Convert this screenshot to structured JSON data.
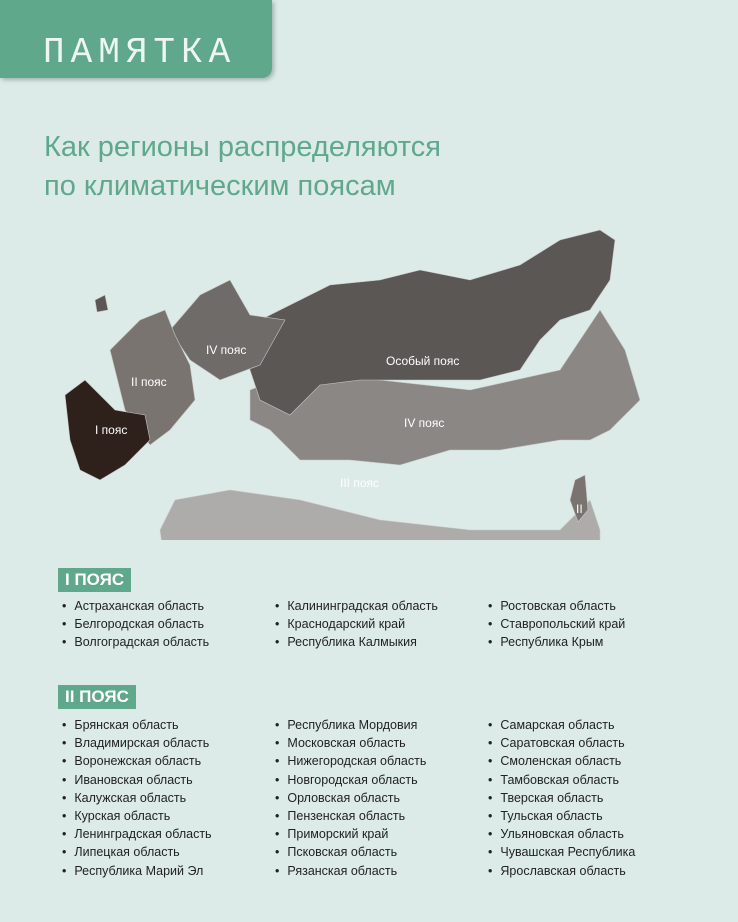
{
  "header": {
    "tab": "ПАМЯТКА",
    "title_line1": "Как регионы распределяются",
    "title_line2": "по климатическим поясам"
  },
  "map": {
    "labels": {
      "zone1": "I пояс",
      "zone2": "II пояс",
      "zone4w": "IV пояс",
      "special": "Особый пояс",
      "zone4e": "IV пояс",
      "zone3": "III пояс",
      "zone2e": "II"
    },
    "colors": {
      "zone1": "#2e211c",
      "zone2": "#7a7471",
      "zone3": "#aeacaa",
      "zone4": "#8a8785",
      "special": "#5a5755"
    }
  },
  "zones": [
    {
      "title": "I ПОЯС",
      "columns": [
        [
          "Астраханская область",
          "Белгородская область",
          "Волгоградская область"
        ],
        [
          "Калининградская область",
          "Краснодарский край",
          "Республика Калмыкия"
        ],
        [
          "Ростовская область",
          "Ставропольский край",
          "Республика Крым"
        ]
      ]
    },
    {
      "title": "II ПОЯС",
      "columns": [
        [
          "Брянская область",
          "Владимирская область",
          "Воронежская область",
          "Ивановская область",
          "Калужская область",
          "Курская область",
          "Ленинградская область",
          "Липецкая область",
          "Республика Марий Эл"
        ],
        [
          "Республика Мордовия",
          "Московская область",
          "Нижегородская область",
          "Новгородская область",
          "Орловская область",
          "Пензенская область",
          "Приморский край",
          "Псковская область",
          "Рязанская область"
        ],
        [
          "Самарская область",
          "Саратовская область",
          "Смоленская область",
          "Тамбовская область",
          "Тверская область",
          "Тульская область",
          "Ульяновская область",
          "Чувашская Республика",
          "Ярославская область"
        ]
      ]
    }
  ]
}
